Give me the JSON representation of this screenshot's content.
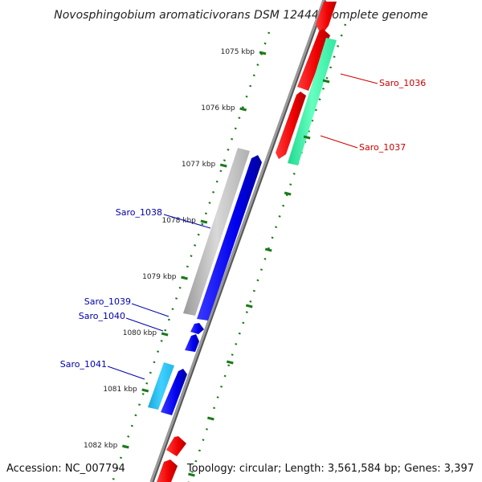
{
  "title": "Novosphingobium aromaticivorans DSM 12444, complete genome",
  "footer": {
    "accession": "Accession: NC_007794",
    "topology": "Topology: circular; Length: 3,561,584 bp; Genes: 3,397"
  },
  "colors": {
    "backbone": "#888888",
    "tick": "#1a7a1a",
    "label_red": "#cc0000",
    "label_blue": "#0000aa"
  },
  "chart_data": {
    "type": "genome-map",
    "ticks": [
      {
        "label": "1075 kbp",
        "kbp": 1075
      },
      {
        "label": "1076 kbp",
        "kbp": 1076
      },
      {
        "label": "1077 kbp",
        "kbp": 1077
      },
      {
        "label": "1078 kbp",
        "kbp": 1078
      },
      {
        "label": "1079 kbp",
        "kbp": 1079
      },
      {
        "label": "1080 kbp",
        "kbp": 1080
      },
      {
        "label": "1081 kbp",
        "kbp": 1081
      },
      {
        "label": "1082 kbp",
        "kbp": 1082
      }
    ],
    "labels": [
      {
        "text": "Saro_1036",
        "color": "red"
      },
      {
        "text": "Saro_1037",
        "color": "red"
      },
      {
        "text": "Saro_1038",
        "color": "blue"
      },
      {
        "text": "Saro_1039",
        "color": "blue"
      },
      {
        "text": "Saro_1040",
        "color": "blue"
      },
      {
        "text": "Saro_1041",
        "color": "blue"
      }
    ]
  }
}
